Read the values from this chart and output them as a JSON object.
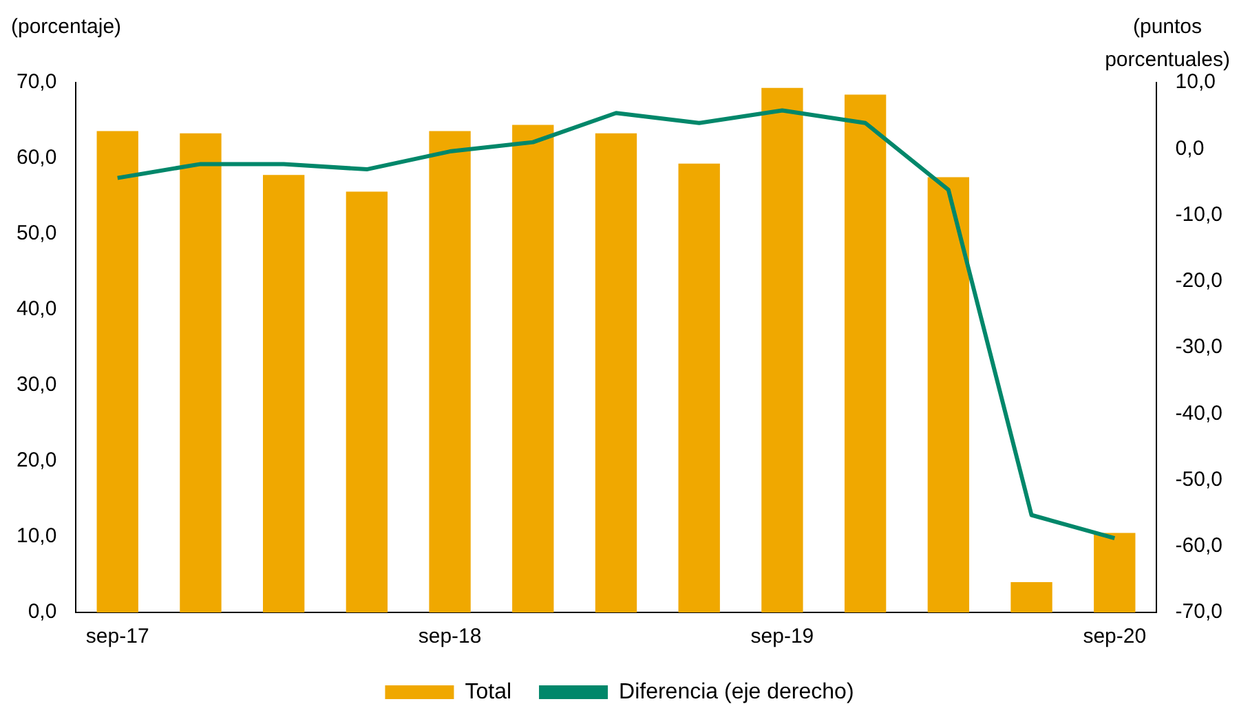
{
  "chart_data": {
    "type": "bar",
    "ylabel": "(porcentaje)",
    "y2label": "(puntos porcentuales)",
    "categories": [
      "sep-17",
      null,
      null,
      null,
      "sep-18",
      null,
      null,
      null,
      "sep-19",
      null,
      null,
      null,
      "sep-20"
    ],
    "series": [
      {
        "name": "Total",
        "color": "#f0a800",
        "values": [
          63.6,
          63.3,
          57.8,
          55.6,
          63.6,
          64.4,
          63.3,
          59.3,
          69.3,
          68.4,
          57.5,
          4.0,
          10.5
        ]
      },
      {
        "name": "Diferencia (eje derecho)",
        "type": "line",
        "axis": "y2",
        "color": "#00876a",
        "values": [
          -4.4,
          -2.3,
          -2.3,
          -3.1,
          -0.4,
          1.0,
          5.4,
          3.9,
          5.8,
          3.9,
          -6.2,
          -55.3,
          -58.8
        ]
      }
    ],
    "ylim": [
      0,
      70
    ],
    "yticks": [
      {
        "value": 0,
        "label": "0,0"
      },
      {
        "value": 10,
        "label": "10,0"
      },
      {
        "value": 20,
        "label": "20,0"
      },
      {
        "value": 30,
        "label": "30,0"
      },
      {
        "value": 40,
        "label": "40,0"
      },
      {
        "value": 50,
        "label": "50,0"
      },
      {
        "value": 60,
        "label": "60,0"
      },
      {
        "value": 70,
        "label": "70,0"
      }
    ],
    "y2lim": [
      -70,
      10
    ],
    "y2ticks": [
      {
        "value": -70,
        "label": "-70,0"
      },
      {
        "value": -60,
        "label": "-60,0"
      },
      {
        "value": -50,
        "label": "-50,0"
      },
      {
        "value": -40,
        "label": "-40,0"
      },
      {
        "value": -30,
        "label": "-30,0"
      },
      {
        "value": -20,
        "label": "-20,0"
      },
      {
        "value": -10,
        "label": "-10,0"
      },
      {
        "value": 0,
        "label": "0,0"
      },
      {
        "value": 10,
        "label": "10,0"
      }
    ],
    "grid": false,
    "legend": "bottom",
    "marker": "none",
    "line_style": "solid"
  }
}
